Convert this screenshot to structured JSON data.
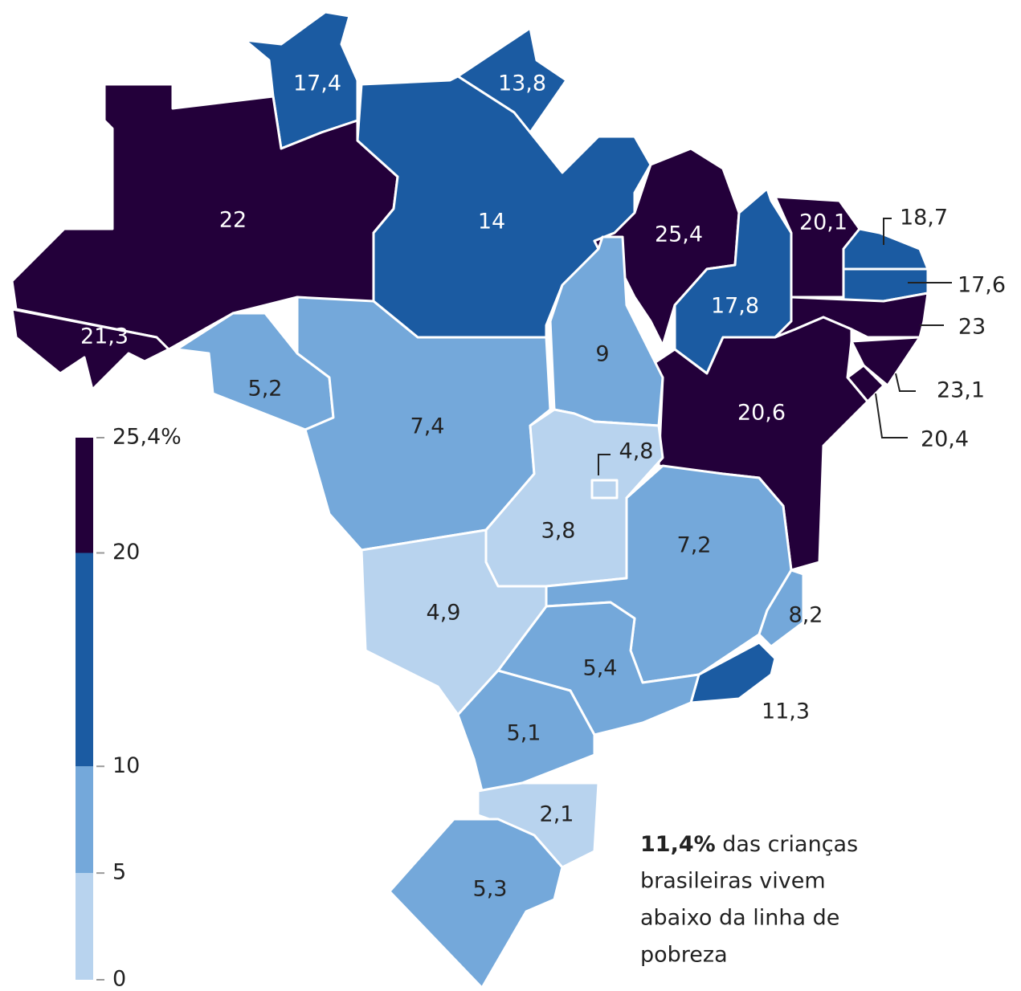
{
  "regions": [
    {
      "value": 17.4,
      "label": "17,4"
    },
    {
      "value": 13.8,
      "label": "13,8"
    },
    {
      "value": 22,
      "label": "22"
    },
    {
      "value": 21.3,
      "label": "21,3"
    },
    {
      "value": 14,
      "label": "14"
    },
    {
      "value": 25.4,
      "label": "25,4"
    },
    {
      "value": 17.8,
      "label": "17,8"
    },
    {
      "value": 20.1,
      "label": "20,1"
    },
    {
      "value": 18.7,
      "label": "18,7"
    },
    {
      "value": 17.6,
      "label": "17,6"
    },
    {
      "value": 23,
      "label": "23"
    },
    {
      "value": 23.1,
      "label": "23,1"
    },
    {
      "value": 20.4,
      "label": "20,4"
    },
    {
      "value": 20.6,
      "label": "20,6"
    },
    {
      "value": 9,
      "label": "9"
    },
    {
      "value": 5.2,
      "label": "5,2"
    },
    {
      "value": 7.4,
      "label": "7,4"
    },
    {
      "value": 3.8,
      "label": "3,8"
    },
    {
      "value": 4.8,
      "label": "4,8"
    },
    {
      "value": 7.2,
      "label": "7,2"
    },
    {
      "value": 8.2,
      "label": "8,2"
    },
    {
      "value": 11.3,
      "label": "11,3"
    },
    {
      "value": 5.4,
      "label": "5,4"
    },
    {
      "value": 4.9,
      "label": "4,9"
    },
    {
      "value": 5.1,
      "label": "5,1"
    },
    {
      "value": 2.1,
      "label": "2,1"
    },
    {
      "value": 5.3,
      "label": "5,3"
    }
  ],
  "legend": {
    "range": [
      0,
      25.4
    ],
    "ticks": [
      0,
      5,
      10,
      20,
      {
        "value": 25.4,
        "label": "25,4%"
      }
    ],
    "colors": [
      "#b8d3ee",
      "#74a8da",
      "#1b5ba2",
      "#23003a"
    ]
  },
  "annotation": {
    "highlight": "11,4%",
    "lines": [
      " das crianças",
      "brasileiras vivem",
      "abaixo da linha de",
      "pobreza"
    ]
  }
}
